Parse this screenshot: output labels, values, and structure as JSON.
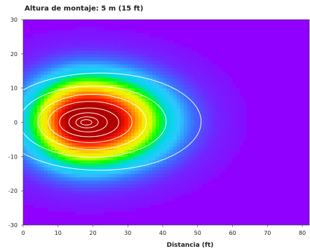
{
  "chart_data": {
    "type": "heatmap",
    "title": "Altura de montaje: 5 m (15 ft)",
    "xlabel": "Distancia (ft)",
    "ylabel": "",
    "xlim": [
      0,
      82
    ],
    "ylim": [
      -30,
      30
    ],
    "x_ticks": [
      0,
      10,
      20,
      30,
      40,
      50,
      60,
      70,
      80
    ],
    "y_ticks": [
      30,
      20,
      10,
      0,
      -10,
      -20,
      -30
    ],
    "grid": false,
    "legend": "none",
    "background_color": "#9000ff",
    "peak": {
      "x": 18,
      "y": 0
    },
    "colormap": [
      "#9000ff",
      "#6f27ff",
      "#3b6eff",
      "#2cc8ff",
      "#00d7e4",
      "#00ff00",
      "#d8ff00",
      "#ffe400",
      "#ff8800",
      "#ff1a00",
      "#b00000"
    ],
    "contours": [
      {
        "name": "contour-1",
        "rx": 29.0,
        "ry": 14.2,
        "cx": 22.0,
        "cy": 0.2
      },
      {
        "name": "contour-2",
        "rx": 21.0,
        "ry": 10.4,
        "cx": 20.0,
        "cy": 0.2
      },
      {
        "name": "contour-3",
        "rx": 15.5,
        "ry": 8.1,
        "cx": 19.8,
        "cy": 0.1
      },
      {
        "name": "contour-4",
        "rx": 12.0,
        "ry": 6.0,
        "cx": 19.2,
        "cy": 0.1
      },
      {
        "name": "contour-5",
        "rx": 8.5,
        "ry": 4.2,
        "cx": 18.9,
        "cy": 0.0
      },
      {
        "name": "contour-6",
        "rx": 5.5,
        "ry": 2.8,
        "cx": 18.6,
        "cy": 0.0
      },
      {
        "name": "contour-7",
        "rx": 3.2,
        "ry": 1.6,
        "cx": 18.3,
        "cy": 0.0
      },
      {
        "name": "contour-8",
        "rx": 1.6,
        "ry": 0.8,
        "cx": 18.1,
        "cy": 0.0
      }
    ],
    "field": {
      "peak_x": 18,
      "peak_y": 0,
      "sigma_x_left": 11,
      "sigma_x_right": 15,
      "sigma_y": 9,
      "outer_halo_x": 24,
      "outer_halo_y": 14
    }
  }
}
